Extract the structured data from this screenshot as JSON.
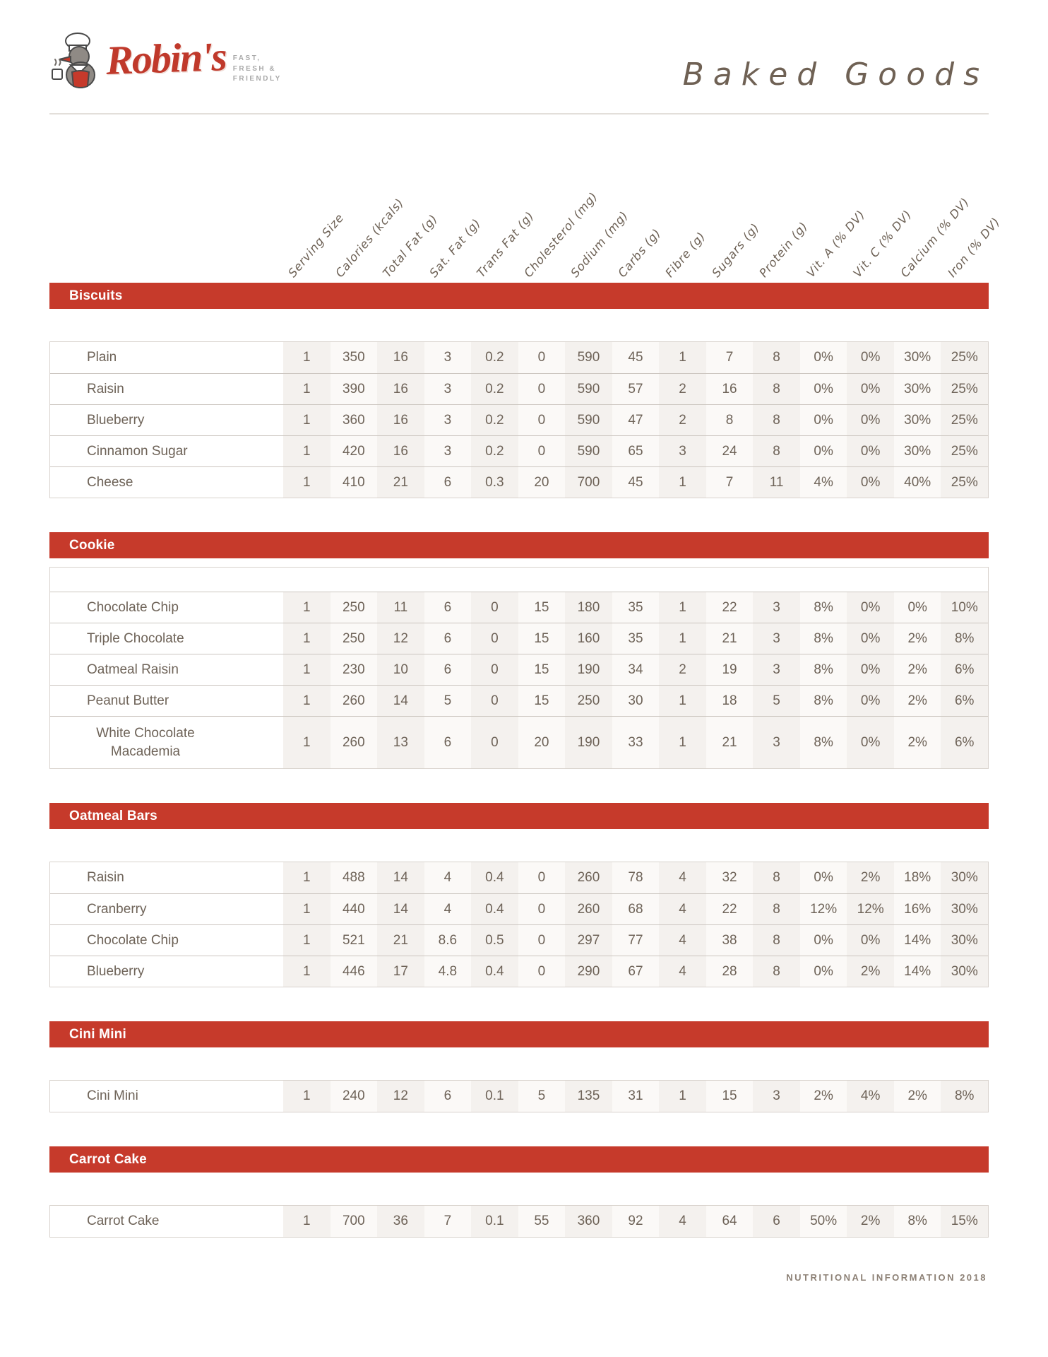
{
  "header": {
    "brand": "Robin's",
    "tagline_lines": [
      "FAST,",
      "FRESH &",
      "FRIENDLY"
    ],
    "title": "Baked Goods"
  },
  "columns": [
    "Serving Size",
    "Calories (kcals)",
    "Total Fat (g)",
    "Sat. Fat (g)",
    "Trans Fat (g)",
    "Cholesterol (mg)",
    "Sodium (mg)",
    "Carbs (g)",
    "Fibre (g)",
    "Sugars (g)",
    "Protein (g)",
    "Vit. A (% DV)",
    "Vit. C (% DV)",
    "Calcium (% DV)",
    "Iron (% DV)"
  ],
  "sections": [
    {
      "title": "Biscuits",
      "has_empty_row": false,
      "rows": [
        {
          "name": "Plain",
          "values": [
            "1",
            "350",
            "16",
            "3",
            "0.2",
            "0",
            "590",
            "45",
            "1",
            "7",
            "8",
            "0%",
            "0%",
            "30%",
            "25%"
          ]
        },
        {
          "name": "Raisin",
          "values": [
            "1",
            "390",
            "16",
            "3",
            "0.2",
            "0",
            "590",
            "57",
            "2",
            "16",
            "8",
            "0%",
            "0%",
            "30%",
            "25%"
          ]
        },
        {
          "name": "Blueberry",
          "values": [
            "1",
            "360",
            "16",
            "3",
            "0.2",
            "0",
            "590",
            "47",
            "2",
            "8",
            "8",
            "0%",
            "0%",
            "30%",
            "25%"
          ]
        },
        {
          "name": "Cinnamon Sugar",
          "values": [
            "1",
            "420",
            "16",
            "3",
            "0.2",
            "0",
            "590",
            "65",
            "3",
            "24",
            "8",
            "0%",
            "0%",
            "30%",
            "25%"
          ]
        },
        {
          "name": "Cheese",
          "values": [
            "1",
            "410",
            "21",
            "6",
            "0.3",
            "20",
            "700",
            "45",
            "1",
            "7",
            "11",
            "4%",
            "0%",
            "40%",
            "25%"
          ]
        }
      ]
    },
    {
      "title": "Cookie",
      "has_empty_row": true,
      "rows": [
        {
          "name": "Chocolate Chip",
          "values": [
            "1",
            "250",
            "11",
            "6",
            "0",
            "15",
            "180",
            "35",
            "1",
            "22",
            "3",
            "8%",
            "0%",
            "0%",
            "10%"
          ]
        },
        {
          "name": "Triple Chocolate",
          "values": [
            "1",
            "250",
            "12",
            "6",
            "0",
            "15",
            "160",
            "35",
            "1",
            "21",
            "3",
            "8%",
            "0%",
            "2%",
            "8%"
          ]
        },
        {
          "name": "Oatmeal Raisin",
          "values": [
            "1",
            "230",
            "10",
            "6",
            "0",
            "15",
            "190",
            "34",
            "2",
            "19",
            "3",
            "8%",
            "0%",
            "2%",
            "6%"
          ]
        },
        {
          "name": "Peanut Butter",
          "values": [
            "1",
            "260",
            "14",
            "5",
            "0",
            "15",
            "250",
            "30",
            "1",
            "18",
            "5",
            "8%",
            "0%",
            "2%",
            "6%"
          ]
        },
        {
          "name": "White Chocolate Macademia",
          "values": [
            "1",
            "260",
            "13",
            "6",
            "0",
            "20",
            "190",
            "33",
            "1",
            "21",
            "3",
            "8%",
            "0%",
            "2%",
            "6%"
          ],
          "tall": true
        }
      ]
    },
    {
      "title": "Oatmeal Bars",
      "has_empty_row": false,
      "rows": [
        {
          "name": "Raisin",
          "values": [
            "1",
            "488",
            "14",
            "4",
            "0.4",
            "0",
            "260",
            "78",
            "4",
            "32",
            "8",
            "0%",
            "2%",
            "18%",
            "30%"
          ]
        },
        {
          "name": "Cranberry",
          "values": [
            "1",
            "440",
            "14",
            "4",
            "0.4",
            "0",
            "260",
            "68",
            "4",
            "22",
            "8",
            "12%",
            "12%",
            "16%",
            "30%"
          ]
        },
        {
          "name": "Chocolate Chip",
          "values": [
            "1",
            "521",
            "21",
            "8.6",
            "0.5",
            "0",
            "297",
            "77",
            "4",
            "38",
            "8",
            "0%",
            "0%",
            "14%",
            "30%"
          ]
        },
        {
          "name": "Blueberry",
          "values": [
            "1",
            "446",
            "17",
            "4.8",
            "0.4",
            "0",
            "290",
            "67",
            "4",
            "28",
            "8",
            "0%",
            "2%",
            "14%",
            "30%"
          ]
        }
      ]
    },
    {
      "title": "Cini Mini",
      "has_empty_row": false,
      "rows": [
        {
          "name": "Cini Mini",
          "values": [
            "1",
            "240",
            "12",
            "6",
            "0.1",
            "5",
            "135",
            "31",
            "1",
            "15",
            "3",
            "2%",
            "4%",
            "2%",
            "8%"
          ]
        }
      ]
    },
    {
      "title": "Carrot Cake",
      "has_empty_row": false,
      "rows": [
        {
          "name": "Carrot Cake",
          "values": [
            "1",
            "700",
            "36",
            "7",
            "0.1",
            "55",
            "360",
            "92",
            "4",
            "64",
            "6",
            "50%",
            "2%",
            "8%",
            "15%"
          ]
        }
      ]
    }
  ],
  "footer": {
    "text": "NUTRITIONAL INFORMATION 2018"
  },
  "colors": {
    "accent_red": "#c63a2b",
    "text_brown": "#6e6358",
    "title_brown": "#6f6154",
    "stripe": "#f4f1ee"
  }
}
